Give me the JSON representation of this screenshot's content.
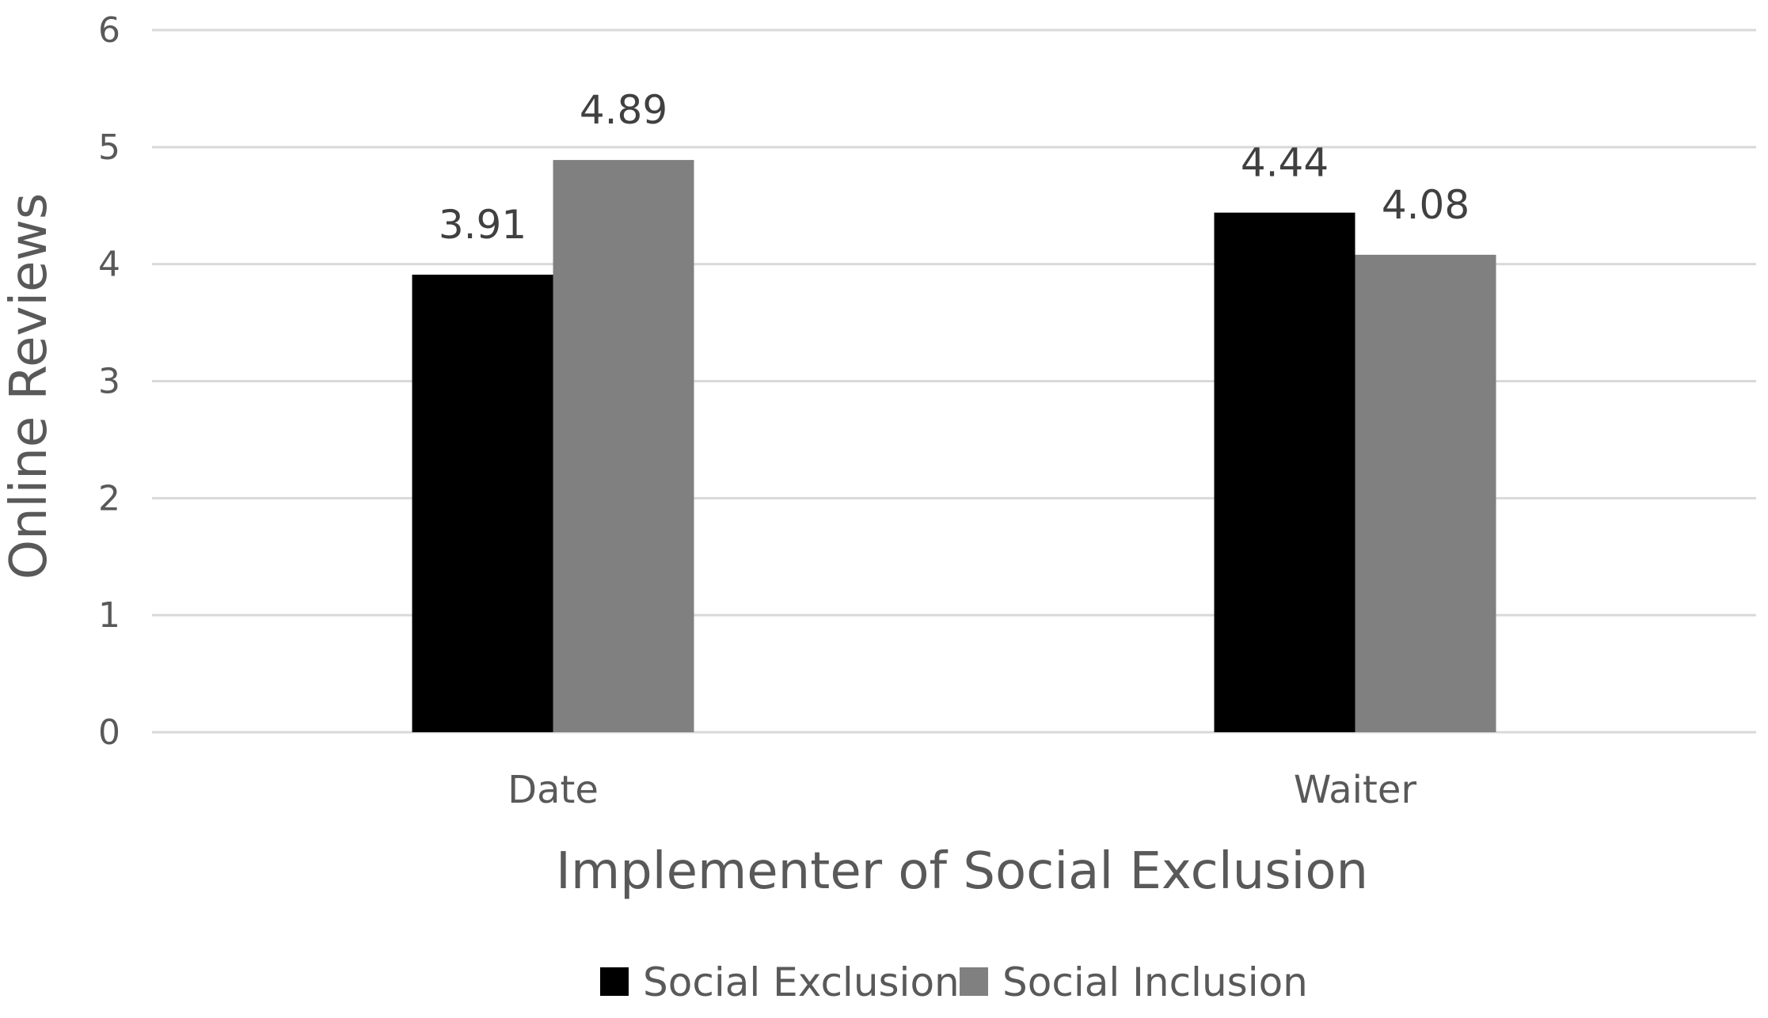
{
  "chart_data": {
    "type": "bar",
    "title": "",
    "xlabel": "Implementer of Social Exclusion",
    "ylabel": "Online Reviews",
    "categories": [
      "Date",
      "Waiter"
    ],
    "series": [
      {
        "name": "Social Exclusion",
        "values": [
          3.91,
          4.44
        ],
        "color": "#000000"
      },
      {
        "name": "Social Inclusion",
        "values": [
          4.89,
          4.08
        ],
        "color": "#808080"
      }
    ],
    "data_labels": [
      [
        "3.91",
        "4.89"
      ],
      [
        "4.44",
        "4.08"
      ]
    ],
    "ylim": [
      0,
      6
    ],
    "yticks": [
      0,
      1,
      2,
      3,
      4,
      5,
      6
    ],
    "grid": true,
    "gridline_color": "#d9d9d9",
    "legend_position": "bottom"
  }
}
